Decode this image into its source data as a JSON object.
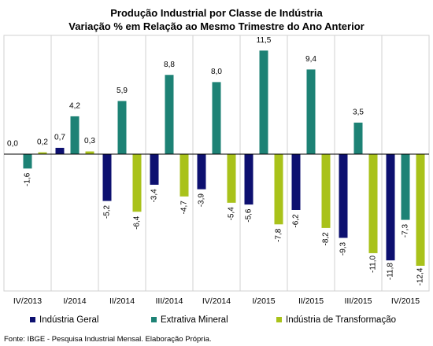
{
  "chart_data": {
    "type": "bar",
    "title": "Produção Industrial por Classe de Indústria",
    "subtitle": "Variação % em Relação ao Mesmo Trimestre do Ano Anterior",
    "categories": [
      "IV/2013",
      "I/2014",
      "II/2014",
      "III/2014",
      "IV/2014",
      "I/2015",
      "II/2015",
      "III/2015",
      "IV/2015"
    ],
    "series": [
      {
        "name": "Indústria Geral",
        "color": "#0D1070",
        "values": [
          0.0,
          0.7,
          -5.2,
          -3.4,
          -3.9,
          -5.6,
          -6.2,
          -9.3,
          -11.8
        ],
        "labels": [
          "0,0",
          "0,7",
          "-5,2",
          "-3,4",
          "-3,9",
          "-5,6",
          "-6,2",
          "-9,3",
          "-11,8"
        ]
      },
      {
        "name": "Extrativa Mineral",
        "color": "#1D8275",
        "values": [
          -1.6,
          4.2,
          5.9,
          8.8,
          8.0,
          11.5,
          9.4,
          3.5,
          -7.3
        ],
        "labels": [
          "-1,6",
          "4,2",
          "5,9",
          "8,8",
          "8,0",
          "11,5",
          "9,4",
          "3,5",
          "-7,3"
        ]
      },
      {
        "name": "Indústria de Transformação",
        "color": "#A9C21A",
        "values": [
          0.2,
          0.3,
          -6.4,
          -4.7,
          -5.4,
          -7.8,
          -8.2,
          -11.0,
          -12.4
        ],
        "labels": [
          "0,2",
          "0,3",
          "-6,4",
          "-4,7",
          "-5,4",
          "-7,8",
          "-8,2",
          "-11,0",
          "-12,4"
        ]
      }
    ],
    "ylim": [
      -14,
      12
    ],
    "grid": false,
    "legend_position": "bottom",
    "source": "Fonte: IBGE - Pesquisa Industrial Mensal. Elaboração Própria."
  }
}
